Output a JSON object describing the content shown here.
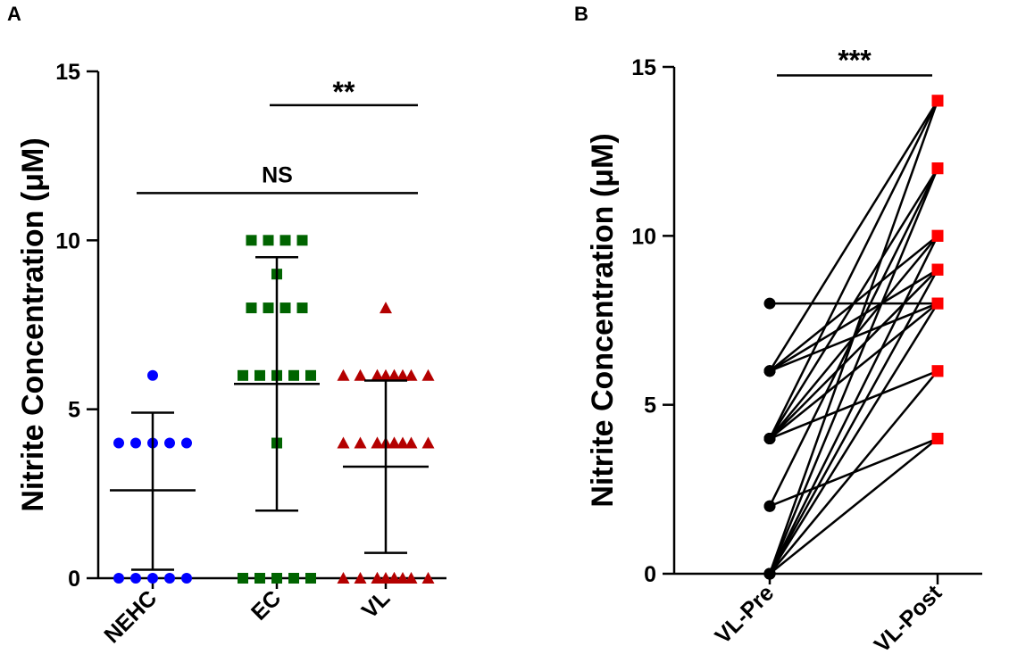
{
  "chart_data": [
    {
      "panel": "A",
      "type": "scatter",
      "ylabel": "Nitrite Concentration (μM)",
      "xlabel": "",
      "ylim": [
        0,
        15
      ],
      "yticks": [
        "0",
        "5",
        "10",
        "15"
      ],
      "categories": [
        "NEHC",
        "EC",
        "VL"
      ],
      "marker_colors": [
        "#0000ff",
        "#006400",
        "#b40000"
      ],
      "series": [
        {
          "name": "NEHC",
          "values": [
            6,
            4,
            4,
            4,
            4,
            4,
            0,
            0,
            0,
            0,
            0
          ],
          "mean": 2.6,
          "sd_low": 0.25,
          "sd_high": 4.9
        },
        {
          "name": "EC",
          "values": [
            10,
            10,
            10,
            10,
            9,
            8,
            8,
            8,
            8,
            6,
            6,
            6,
            6,
            6,
            4,
            0,
            0,
            0,
            0,
            0
          ],
          "mean": 5.75,
          "sd_low": 2.0,
          "sd_high": 9.5
        },
        {
          "name": "VL",
          "values": [
            8,
            6,
            6,
            6,
            6,
            6,
            6,
            6,
            6,
            6,
            6,
            4,
            4,
            4,
            4,
            4,
            4,
            4,
            4,
            4,
            4,
            0,
            0,
            0,
            0,
            0,
            0,
            0,
            0,
            0,
            0
          ],
          "mean": 3.3,
          "sd_low": 0.75,
          "sd_high": 5.85
        }
      ],
      "annotations": [
        {
          "text": "**",
          "from": "EC",
          "to": "VL",
          "y": 14.0
        },
        {
          "text": "NS",
          "from": "NEHC",
          "to": "VL",
          "y": 11.4
        }
      ]
    },
    {
      "panel": "B",
      "type": "line",
      "ylabel": "Nitrite Concentration (μM)",
      "xlabel": "",
      "ylim": [
        0,
        15
      ],
      "yticks": [
        "0",
        "5",
        "10",
        "15"
      ],
      "categories": [
        "VL-Pre",
        "VL-Post"
      ],
      "pre_color": "#000000",
      "post_color": "#ff0000",
      "pairs": [
        [
          8,
          8
        ],
        [
          6,
          14
        ],
        [
          6,
          10
        ],
        [
          6,
          9
        ],
        [
          6,
          8
        ],
        [
          4,
          14
        ],
        [
          4,
          12
        ],
        [
          4,
          10
        ],
        [
          4,
          9
        ],
        [
          4,
          8
        ],
        [
          4,
          6
        ],
        [
          2,
          12
        ],
        [
          2,
          4
        ],
        [
          0,
          14
        ],
        [
          0,
          12
        ],
        [
          0,
          10
        ],
        [
          0,
          9
        ],
        [
          0,
          8
        ],
        [
          0,
          6
        ],
        [
          0,
          4
        ]
      ],
      "annotations": [
        {
          "text": "***",
          "from": "VL-Pre",
          "to": "VL-Post",
          "y": 14.75
        }
      ]
    }
  ]
}
